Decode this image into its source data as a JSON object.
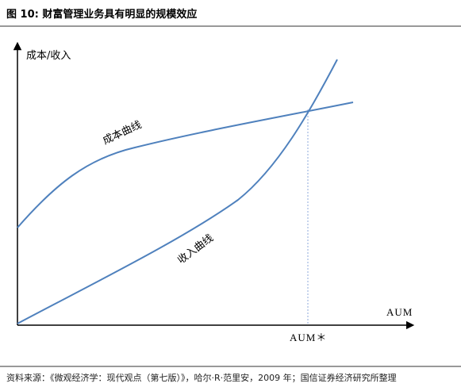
{
  "header": {
    "title": "图 10: 财富管理业务具有明显的规模效应"
  },
  "axes": {
    "y_label": "成本/收入",
    "x_label": "AUM"
  },
  "curves": [
    {
      "label": "成本曲线"
    },
    {
      "label": "收入曲线"
    }
  ],
  "marker": {
    "label": "AUM＊"
  },
  "footer": {
    "source": "资料来源：《微观经济学：现代观点（第七版）》，哈尔·R·范里安，2009 年；国信证券经济研究所整理"
  }
}
